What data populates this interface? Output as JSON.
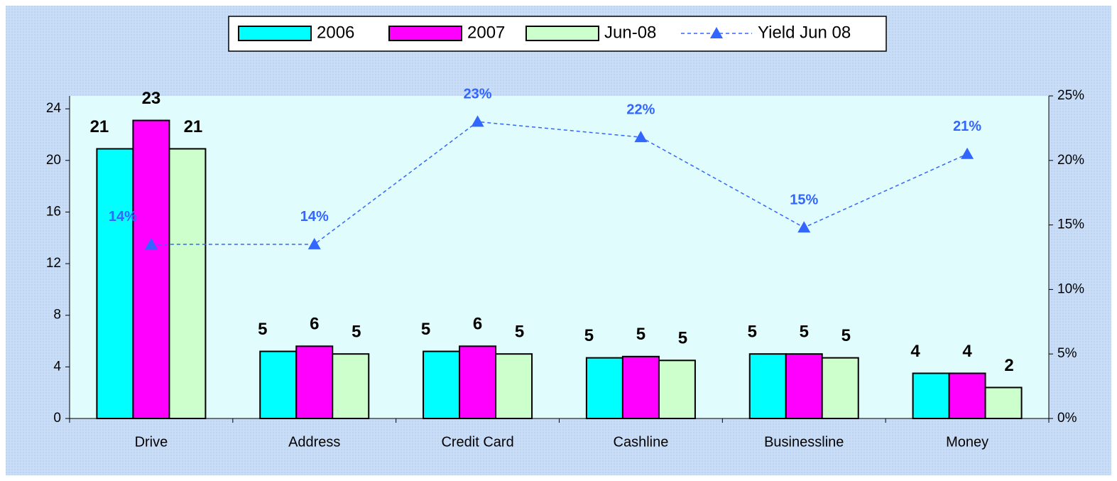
{
  "chart_data": {
    "type": "bar",
    "categories": [
      "Drive",
      "Address",
      "Credit Card",
      "Cashline",
      "Businessline",
      "Money"
    ],
    "series": [
      {
        "name": "2006",
        "color": "#00ffff",
        "values": [
          20.9,
          5.2,
          5.2,
          4.7,
          5.0,
          3.5
        ],
        "value_labels": [
          "21",
          "5",
          "5",
          "5",
          "5",
          "4"
        ]
      },
      {
        "name": "2007",
        "color": "#ff00ff",
        "values": [
          23.1,
          5.6,
          5.6,
          4.8,
          5.0,
          3.5
        ],
        "value_labels": [
          "23",
          "6",
          "6",
          "5",
          "5",
          "4"
        ]
      },
      {
        "name": "Jun-08",
        "color": "#ccffcc",
        "values": [
          20.9,
          5.0,
          5.0,
          4.5,
          4.7,
          2.4
        ],
        "value_labels": [
          "21",
          "5",
          "5",
          "5",
          "5",
          "2"
        ]
      },
      {
        "name": "Yield Jun 08",
        "type": "line",
        "axis": "y2",
        "color": "#3366ff",
        "values": [
          13.5,
          13.5,
          23.0,
          21.8,
          14.8,
          20.5
        ],
        "value_labels": [
          "14%",
          "14%",
          "23%",
          "22%",
          "15%",
          "21%"
        ]
      }
    ],
    "ylim": [
      0,
      25
    ],
    "yticks": [
      0,
      4,
      8,
      12,
      16,
      20,
      24
    ],
    "y2lim": [
      0,
      25
    ],
    "y2ticks": [
      {
        "value": 0,
        "label": "0%"
      },
      {
        "value": 5,
        "label": "5%"
      },
      {
        "value": 10,
        "label": "10%"
      },
      {
        "value": 15,
        "label": "15%"
      },
      {
        "value": 20,
        "label": "20%"
      },
      {
        "value": 25,
        "label": "25%"
      }
    ],
    "legend": "top"
  }
}
